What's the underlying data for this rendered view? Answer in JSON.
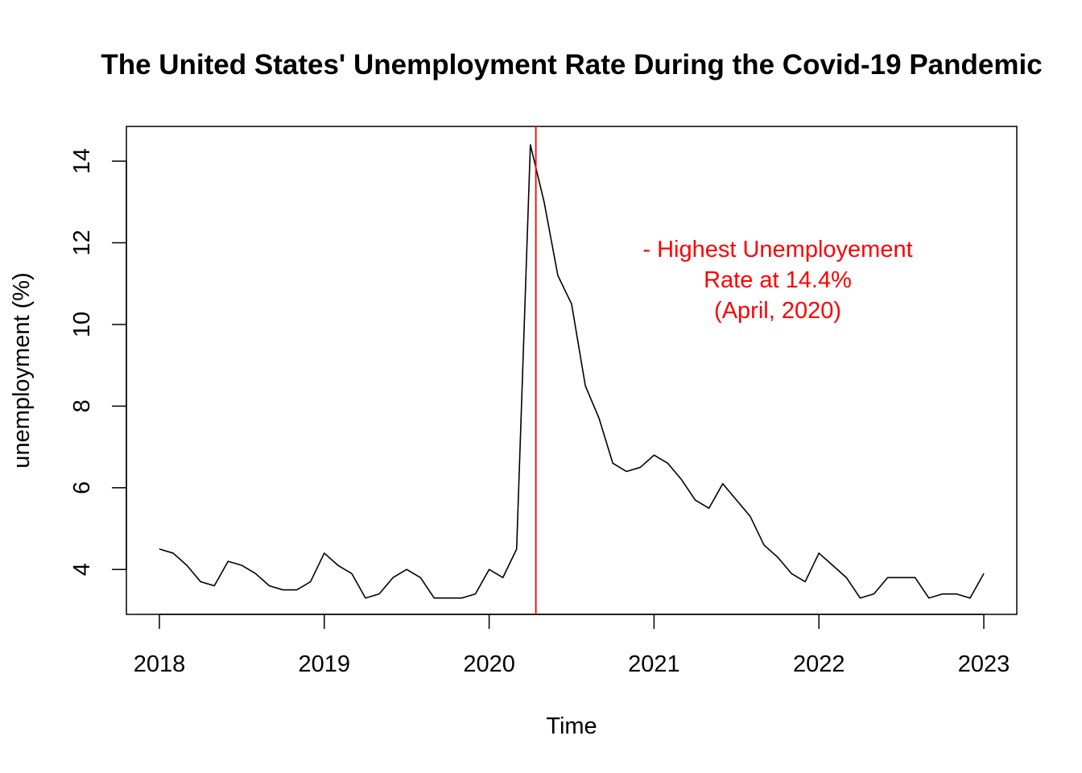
{
  "chart_data": {
    "type": "line",
    "title": "The United States' Unemployment Rate During the Covid-19 Pandemic",
    "xlabel": "Time",
    "ylabel": "unemployment (%)",
    "xlim": [
      2017.8,
      2023.2
    ],
    "ylim": [
      2.9,
      14.85
    ],
    "x_ticks": [
      2018,
      2019,
      2020,
      2021,
      2022,
      2023
    ],
    "y_ticks": [
      4,
      6,
      8,
      10,
      12,
      14
    ],
    "grid": false,
    "start": "2018-01",
    "frequency": "monthly",
    "series": [
      {
        "color": "#000000",
        "values": [
          4.5,
          4.4,
          4.1,
          3.7,
          3.6,
          4.2,
          4.1,
          3.9,
          3.6,
          3.5,
          3.5,
          3.7,
          4.4,
          4.1,
          3.9,
          3.3,
          3.4,
          3.8,
          4.0,
          3.8,
          3.3,
          3.3,
          3.3,
          3.4,
          4.0,
          3.8,
          4.5,
          14.4,
          13.0,
          11.2,
          10.5,
          8.5,
          7.7,
          6.6,
          6.4,
          6.5,
          6.8,
          6.6,
          6.2,
          5.7,
          5.5,
          6.1,
          5.7,
          5.3,
          4.6,
          4.3,
          3.9,
          3.7,
          4.4,
          4.1,
          3.8,
          3.3,
          3.4,
          3.8,
          3.8,
          3.8,
          3.3,
          3.4,
          3.4,
          3.3,
          3.9
        ]
      }
    ],
    "vline": {
      "x": 2020.2833,
      "color": "#ff0000"
    },
    "annotation": {
      "lines": [
        "- Highest Unemployement",
        "Rate at 14.4%",
        "(April, 2020)"
      ],
      "x": 2021.75,
      "y": 11.1,
      "color": "#ff0000"
    }
  }
}
